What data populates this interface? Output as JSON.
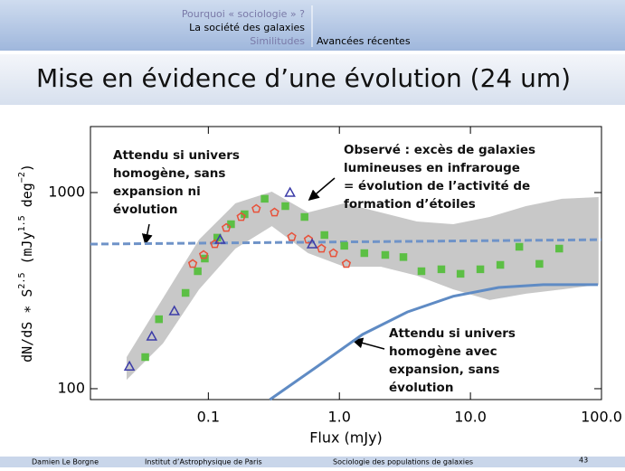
{
  "header": {
    "nav_left": [
      "Pourquoi « sociologie » ?",
      "La société des galaxies",
      "Similitudes"
    ],
    "nav_right": [
      "Avancées récentes"
    ]
  },
  "title": "Mise en évidence d’une évolution (24 um)",
  "footer": {
    "author": "Damien Le Borgne",
    "institute": "Institut d’Astrophysique de Paris",
    "talk": "Sociologie des populations de galaxies",
    "page": "43"
  },
  "chart_data": {
    "type": "scatter",
    "xscale": "log",
    "yscale": "log",
    "xlabel": "Flux (mJy)",
    "ylabel_parts": [
      "dN/dS ∗ S",
      "2.5",
      " (mJy",
      "1.5",
      " deg",
      "−2",
      ")"
    ],
    "xlim": [
      0.0126,
      100
    ],
    "ylim": [
      88,
      2170
    ],
    "xticks": [
      0.1,
      {
        "value": 1,
        "label": "1.0"
      },
      {
        "value": 10,
        "label": "10.0"
      },
      {
        "value": 100,
        "label": "100.0"
      }
    ],
    "yticks": [
      100,
      1000
    ],
    "band": {
      "color": "#c8c8c8",
      "x": [
        0.0238,
        0.045,
        0.085,
        0.161,
        0.305,
        0.577,
        1.09,
        2.07,
        3.9,
        7.4,
        14.0,
        26.5,
        50,
        95
      ],
      "upper": [
        145,
        289,
        576,
        881,
        1011,
        792,
        881,
        792,
        712,
        690,
        751,
        853,
        929,
        948
      ],
      "lower": [
        111,
        170,
        321,
        518,
        674,
        491,
        419,
        419,
        377,
        321,
        283,
        305,
        321,
        339
      ]
    },
    "lines": [
      {
        "style": "dashed",
        "color": "#6f93c8",
        "x": [
          0.0126,
          100
        ],
        "values": [
          546,
          575
        ]
      },
      {
        "style": "solid",
        "color": "#5f8bc4",
        "x": [
          0.295,
          0.68,
          1.5,
          3.3,
          7.4,
          16.4,
          36,
          94
        ],
        "values": [
          88,
          130,
          189,
          246,
          296,
          328,
          339,
          339
        ]
      }
    ],
    "series": [
      {
        "marker": "square",
        "color": "#5cbf45",
        "x": [
          0.033,
          0.042,
          0.067,
          0.083,
          0.094,
          0.117,
          0.149,
          0.189,
          0.269,
          0.387,
          0.542,
          0.769,
          1.09,
          1.55,
          2.24,
          3.08,
          4.23,
          6.0,
          8.4,
          11.9,
          16.9,
          23.6,
          33.6,
          47.6
        ],
        "values": [
          145,
          226,
          308,
          397,
          461,
          589,
          690,
          775,
          929,
          853,
          751,
          607,
          535,
          491,
          481,
          469,
          397,
          406,
          385,
          406,
          428,
          529,
          433,
          518
        ]
      },
      {
        "marker": "pentagon",
        "color": "#e8513a",
        "x": [
          0.076,
          0.092,
          0.112,
          0.137,
          0.178,
          0.232,
          0.32,
          0.433,
          0.58,
          0.73,
          0.9,
          1.13
        ],
        "values": [
          433,
          481,
          546,
          661,
          751,
          826,
          792,
          594,
          576,
          518,
          491,
          433
        ]
      },
      {
        "marker": "triangle",
        "color": "#3c3ca8",
        "x": [
          0.025,
          0.037,
          0.055,
          0.123,
          0.42,
          0.62
        ],
        "values": [
          130,
          185,
          249,
          576,
          1000,
          546
        ]
      }
    ],
    "annotations": [
      {
        "lines": [
          "Attendu si univers",
          "homogène, sans",
          "expansion ni",
          "évolution"
        ]
      },
      {
        "lines": [
          "Observé : excès de galaxies",
          "lumineuses en infrarouge",
          "= évolution de l’activité de",
          "formation d’étoiles"
        ]
      },
      {
        "lines": [
          "Attendu si univers",
          "homogène avec",
          "expansion, sans",
          "évolution"
        ]
      }
    ]
  }
}
